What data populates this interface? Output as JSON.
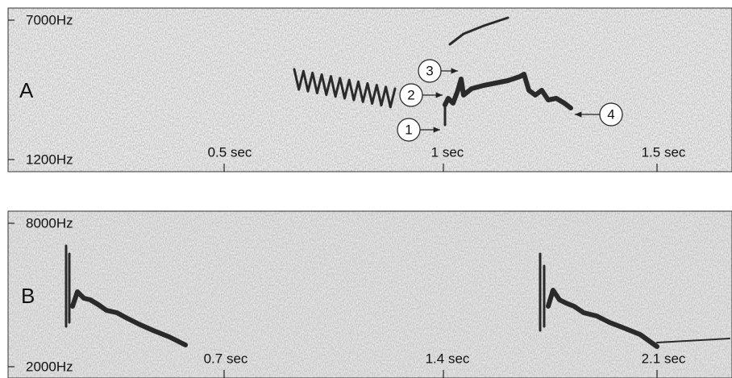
{
  "panels": [
    {
      "label": "A",
      "y_labels": [
        "7000Hz",
        "1200Hz"
      ],
      "x_labels": [
        "0.5 sec",
        "1 sec",
        "1.5 sec"
      ],
      "callouts": [
        "1",
        "2",
        "3",
        "4"
      ]
    },
    {
      "label": "B",
      "y_labels": [
        "8000Hz",
        "2000Hz"
      ],
      "x_labels": [
        "0.7 sec",
        "1.4 sec",
        "2.1 sec"
      ]
    }
  ]
}
